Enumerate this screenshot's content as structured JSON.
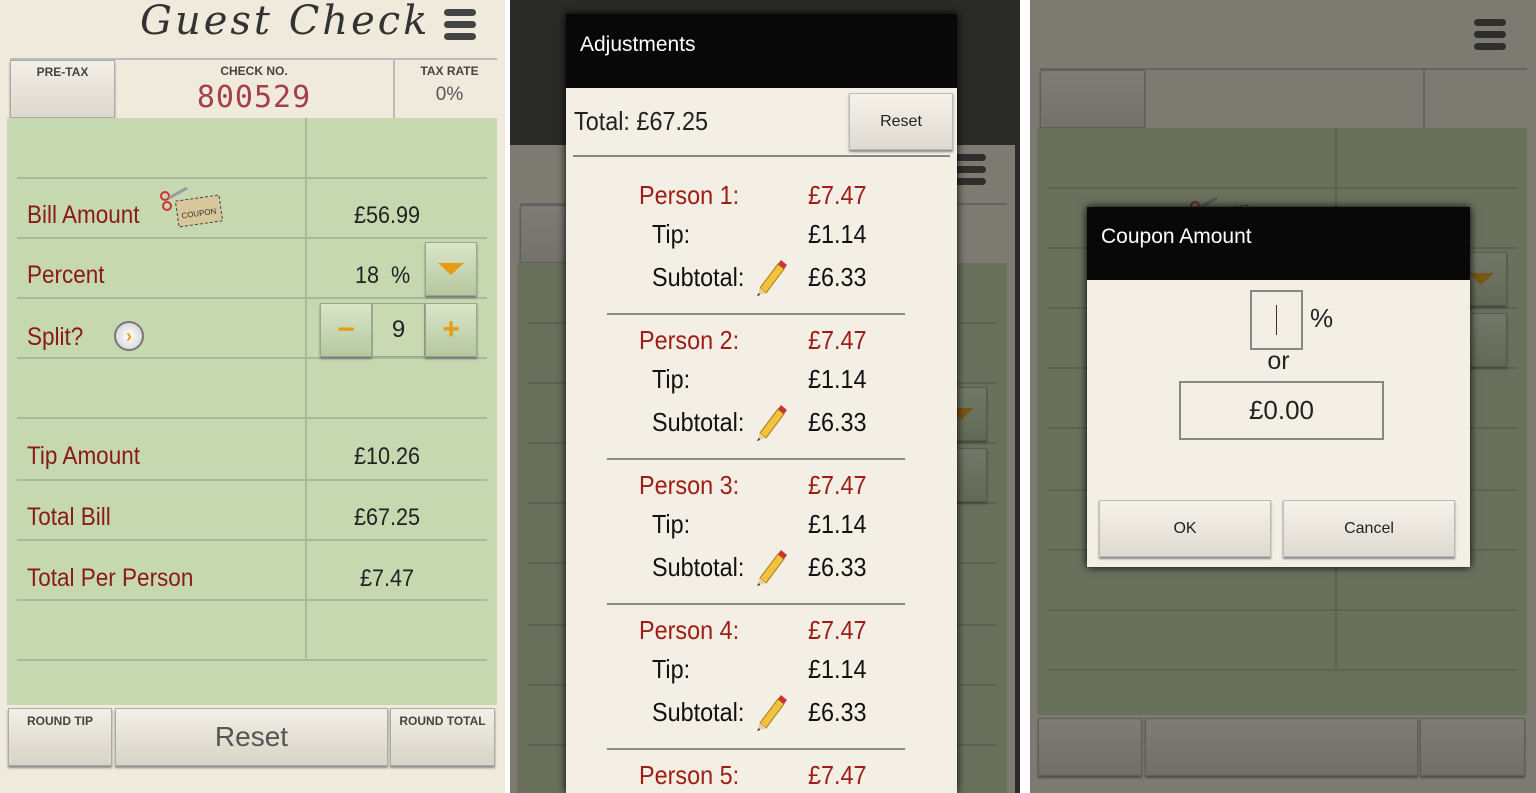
{
  "main": {
    "title": "Guest Check",
    "pre_tax_label": "PRE-TAX",
    "check_no_label": "CHECK NO.",
    "check_no": "800529",
    "tax_rate_label": "TAX RATE",
    "tax_rate": "0%",
    "bill_amount_label": "Bill Amount",
    "bill_amount": "£56.99",
    "coupon_label": "COUPON",
    "percent_label": "Percent",
    "percent_value": "18",
    "percent_sign": "%",
    "split_label": "Split?",
    "split_value": "9",
    "minus": "−",
    "plus": "+",
    "tip_amount_label": "Tip Amount",
    "tip_amount": "£10.26",
    "total_bill_label": "Total Bill",
    "total_bill": "£67.25",
    "total_per_person_label": "Total Per Person",
    "total_per_person": "£7.47",
    "round_tip": "ROUND TIP",
    "reset": "Reset",
    "round_total": "ROUND TOTAL"
  },
  "adjustments": {
    "title": "Adjustments",
    "total": "Total: £67.25",
    "reset": "Reset",
    "tip_label": "Tip:",
    "subtotal_label": "Subtotal:",
    "persons": [
      {
        "label": "Person 1:",
        "amount": "£7.47",
        "tip": "£1.14",
        "subtotal": "£6.33"
      },
      {
        "label": "Person 2:",
        "amount": "£7.47",
        "tip": "£1.14",
        "subtotal": "£6.33"
      },
      {
        "label": "Person 3:",
        "amount": "£7.47",
        "tip": "£1.14",
        "subtotal": "£6.33"
      },
      {
        "label": "Person 4:",
        "amount": "£7.47",
        "tip": "£1.14",
        "subtotal": "£6.33"
      },
      {
        "label": "Person 5:",
        "amount": "£7.47"
      }
    ]
  },
  "coupon": {
    "title": "Coupon Amount",
    "percent_value": "",
    "percent_sign": "%",
    "or": "or",
    "amount": "£0.00",
    "ok": "OK",
    "cancel": "Cancel"
  },
  "colors": {
    "label_red": "#8a1a14",
    "green_sheet": "#c6d8b0",
    "paper": "#efeadb",
    "accent_orange": "#e59b12"
  }
}
